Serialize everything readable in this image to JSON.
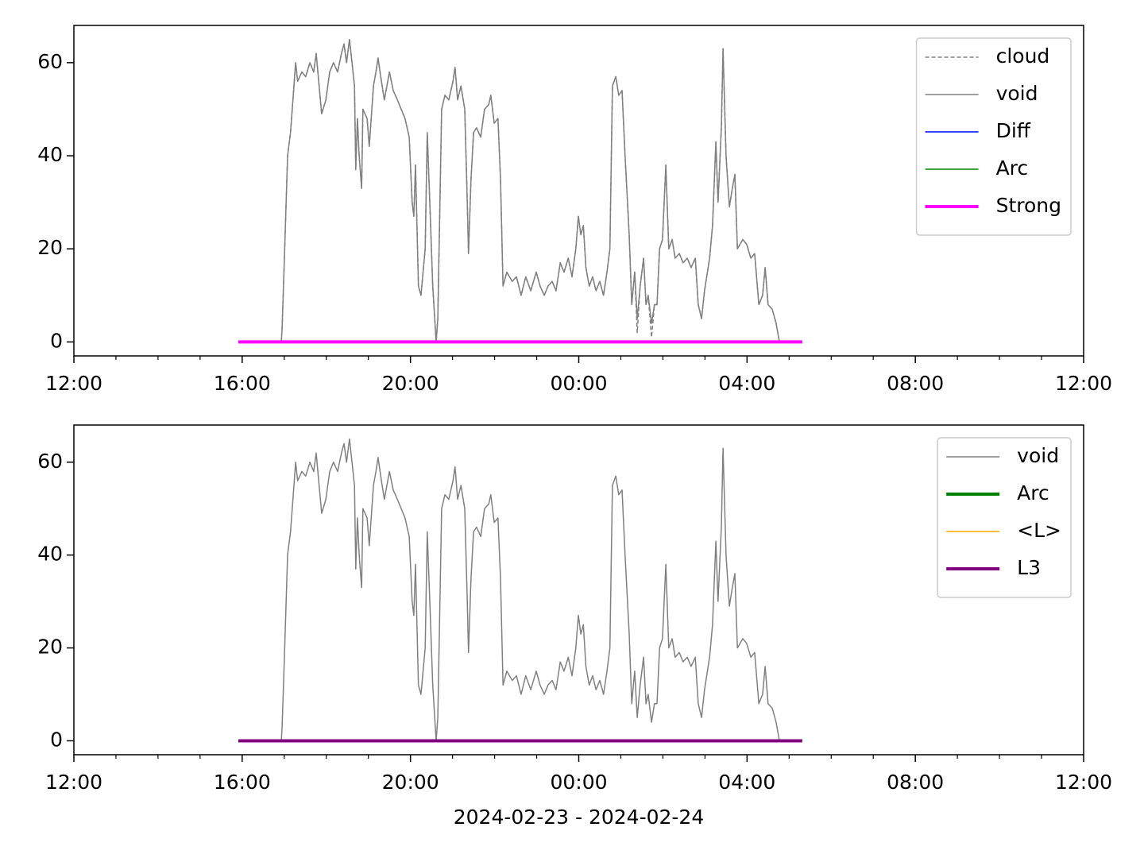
{
  "chart_data": [
    {
      "type": "line",
      "xlim": [
        12,
        36
      ],
      "ylim": [
        -3,
        68
      ],
      "xticks": [
        {
          "value": 12,
          "label": "12:00"
        },
        {
          "value": 16,
          "label": "16:00"
        },
        {
          "value": 20,
          "label": "20:00"
        },
        {
          "value": 24,
          "label": "00:00"
        },
        {
          "value": 28,
          "label": "04:00"
        },
        {
          "value": 32,
          "label": "08:00"
        },
        {
          "value": 36,
          "label": "12:00"
        }
      ],
      "yticks": [
        0,
        20,
        40,
        60
      ],
      "legend": "upper right",
      "x": [
        16.93,
        16.95,
        17.0,
        17.08,
        17.15,
        17.23,
        17.27,
        17.32,
        17.42,
        17.51,
        17.61,
        17.7,
        17.76,
        17.83,
        17.89,
        17.99,
        18.08,
        18.17,
        18.27,
        18.36,
        18.42,
        18.48,
        18.55,
        18.61,
        18.67,
        18.7,
        18.74,
        18.78,
        18.84,
        18.87,
        18.97,
        19.02,
        19.12,
        19.18,
        19.23,
        19.31,
        19.38,
        19.5,
        19.59,
        19.69,
        19.87,
        19.97,
        20.04,
        20.08,
        20.12,
        20.19,
        20.25,
        20.35,
        20.4,
        20.46,
        20.53,
        20.61,
        20.65,
        20.74,
        20.82,
        20.91,
        21.01,
        21.06,
        21.12,
        21.2,
        21.29,
        21.35,
        21.38,
        21.44,
        21.5,
        21.57,
        21.67,
        21.76,
        21.86,
        21.91,
        21.99,
        22.08,
        22.14,
        22.2,
        22.29,
        22.42,
        22.52,
        22.63,
        22.74,
        22.86,
        22.99,
        23.08,
        23.18,
        23.27,
        23.37,
        23.46,
        23.56,
        23.65,
        23.75,
        23.84,
        23.93,
        23.99,
        24.05,
        24.11,
        24.17,
        24.25,
        24.33,
        24.41,
        24.5,
        24.59,
        24.67,
        24.74,
        24.8,
        24.88,
        24.95,
        25.03,
        25.1,
        25.2,
        25.26,
        25.33,
        25.39,
        25.46,
        25.54,
        25.6,
        25.65,
        25.73,
        25.8,
        25.86,
        25.92,
        25.99,
        26.07,
        26.14,
        26.22,
        26.29,
        26.39,
        26.48,
        26.58,
        26.67,
        26.77,
        26.84,
        26.92,
        26.99,
        27.11,
        27.18,
        27.26,
        27.31,
        27.39,
        27.43,
        27.5,
        27.58,
        27.65,
        27.71,
        27.77,
        27.9,
        27.99,
        28.09,
        28.18,
        28.28,
        28.37,
        28.43,
        28.5,
        28.6,
        28.69,
        28.77
      ],
      "series": [
        {
          "name": "cloud",
          "color": "#808080",
          "linestyle": "dashed",
          "linewidth": 1.5,
          "values": [
            0,
            3,
            17,
            40,
            45,
            55,
            60,
            56,
            58,
            57,
            60,
            58,
            62,
            55,
            49,
            52,
            58,
            60,
            58,
            62,
            64,
            60,
            65,
            60,
            55,
            37,
            48,
            40,
            33,
            50,
            48,
            42,
            55,
            58,
            61,
            56,
            52,
            58,
            54,
            52,
            48,
            44,
            30,
            27,
            38,
            12,
            10,
            20,
            45,
            30,
            12,
            0,
            5,
            50,
            53,
            52,
            56,
            59,
            52,
            55,
            50,
            30,
            19,
            35,
            45,
            46,
            44,
            50,
            51,
            53,
            47,
            48,
            35,
            12,
            15,
            13,
            14,
            10,
            14,
            11,
            15,
            12,
            10,
            12,
            13,
            11,
            17,
            15,
            18,
            14,
            20,
            27,
            23,
            25,
            16,
            12,
            14,
            11,
            13,
            10,
            15,
            20,
            55,
            57,
            53,
            54,
            40,
            23,
            8,
            15,
            2,
            12,
            18,
            8,
            10,
            1,
            8,
            8,
            20,
            22,
            38,
            20,
            22,
            18,
            19,
            17,
            18,
            16,
            18,
            8,
            5,
            11,
            18,
            25,
            43,
            30,
            46,
            63,
            40,
            29,
            33,
            36,
            20,
            22,
            21,
            18,
            19,
            8,
            10,
            16,
            8,
            7,
            4,
            0
          ]
        },
        {
          "name": "void",
          "color": "#808080",
          "linewidth": 1.5,
          "values": [
            0,
            3,
            17,
            40,
            45,
            55,
            60,
            56,
            58,
            57,
            60,
            58,
            62,
            55,
            49,
            52,
            58,
            60,
            58,
            62,
            64,
            60,
            65,
            60,
            55,
            37,
            48,
            40,
            33,
            50,
            48,
            42,
            55,
            58,
            61,
            56,
            52,
            58,
            54,
            52,
            48,
            44,
            30,
            27,
            38,
            12,
            10,
            20,
            45,
            30,
            12,
            0,
            5,
            50,
            53,
            52,
            56,
            59,
            52,
            55,
            50,
            30,
            19,
            35,
            45,
            46,
            44,
            50,
            51,
            53,
            47,
            48,
            35,
            12,
            15,
            13,
            14,
            10,
            14,
            11,
            15,
            12,
            10,
            12,
            13,
            11,
            17,
            15,
            18,
            14,
            20,
            27,
            23,
            25,
            16,
            12,
            14,
            11,
            13,
            10,
            15,
            20,
            55,
            57,
            53,
            54,
            40,
            23,
            8,
            15,
            5,
            12,
            18,
            8,
            10,
            4,
            8,
            8,
            20,
            22,
            38,
            20,
            22,
            18,
            19,
            17,
            18,
            16,
            18,
            8,
            5,
            11,
            18,
            25,
            43,
            30,
            46,
            63,
            40,
            29,
            33,
            36,
            20,
            22,
            21,
            18,
            19,
            8,
            10,
            16,
            8,
            7,
            4,
            0
          ]
        },
        {
          "name": "Diff",
          "color": "#0000ff",
          "linewidth": 1.5,
          "x": [
            15.91,
            29.31
          ],
          "values": [
            0,
            0
          ]
        },
        {
          "name": "Arc",
          "color": "#008000",
          "linewidth": 1.5,
          "x": [
            15.91,
            29.31
          ],
          "values": [
            0,
            0
          ]
        },
        {
          "name": "Strong",
          "color": "#ff00ff",
          "linewidth": 4,
          "x": [
            15.91,
            29.31
          ],
          "values": [
            0,
            0
          ]
        }
      ]
    },
    {
      "type": "line",
      "xlim": [
        12,
        36
      ],
      "ylim": [
        -3,
        68
      ],
      "xticks": [
        {
          "value": 12,
          "label": "12:00"
        },
        {
          "value": 16,
          "label": "16:00"
        },
        {
          "value": 20,
          "label": "20:00"
        },
        {
          "value": 24,
          "label": "00:00"
        },
        {
          "value": 28,
          "label": "04:00"
        },
        {
          "value": 32,
          "label": "08:00"
        },
        {
          "value": 36,
          "label": "12:00"
        }
      ],
      "yticks": [
        0,
        20,
        40,
        60
      ],
      "xlabel": "2024-02-23 - 2024-02-24",
      "legend": "upper right",
      "x": [
        16.93,
        16.95,
        17.0,
        17.08,
        17.15,
        17.23,
        17.27,
        17.32,
        17.42,
        17.51,
        17.61,
        17.7,
        17.76,
        17.83,
        17.89,
        17.99,
        18.08,
        18.17,
        18.27,
        18.36,
        18.42,
        18.48,
        18.55,
        18.61,
        18.67,
        18.7,
        18.74,
        18.78,
        18.84,
        18.87,
        18.97,
        19.02,
        19.12,
        19.18,
        19.23,
        19.31,
        19.38,
        19.5,
        19.59,
        19.69,
        19.87,
        19.97,
        20.04,
        20.08,
        20.12,
        20.19,
        20.25,
        20.35,
        20.4,
        20.46,
        20.53,
        20.61,
        20.65,
        20.74,
        20.82,
        20.91,
        21.01,
        21.06,
        21.12,
        21.2,
        21.29,
        21.35,
        21.38,
        21.44,
        21.5,
        21.57,
        21.67,
        21.76,
        21.86,
        21.91,
        21.99,
        22.08,
        22.14,
        22.2,
        22.29,
        22.42,
        22.52,
        22.63,
        22.74,
        22.86,
        22.99,
        23.08,
        23.18,
        23.27,
        23.37,
        23.46,
        23.56,
        23.65,
        23.75,
        23.84,
        23.93,
        23.99,
        24.05,
        24.11,
        24.17,
        24.25,
        24.33,
        24.41,
        24.5,
        24.59,
        24.67,
        24.74,
        24.8,
        24.88,
        24.95,
        25.03,
        25.1,
        25.2,
        25.26,
        25.33,
        25.39,
        25.46,
        25.54,
        25.6,
        25.65,
        25.73,
        25.8,
        25.86,
        25.92,
        25.99,
        26.07,
        26.14,
        26.22,
        26.29,
        26.39,
        26.48,
        26.58,
        26.67,
        26.77,
        26.84,
        26.92,
        26.99,
        27.11,
        27.18,
        27.26,
        27.31,
        27.39,
        27.43,
        27.5,
        27.58,
        27.65,
        27.71,
        27.77,
        27.9,
        27.99,
        28.09,
        28.18,
        28.28,
        28.37,
        28.43,
        28.5,
        28.6,
        28.69,
        28.77
      ],
      "series": [
        {
          "name": "void",
          "color": "#808080",
          "linewidth": 1.5,
          "values": [
            0,
            3,
            17,
            40,
            45,
            55,
            60,
            56,
            58,
            57,
            60,
            58,
            62,
            55,
            49,
            52,
            58,
            60,
            58,
            62,
            64,
            60,
            65,
            60,
            55,
            37,
            48,
            40,
            33,
            50,
            48,
            42,
            55,
            58,
            61,
            56,
            52,
            58,
            54,
            52,
            48,
            44,
            30,
            27,
            38,
            12,
            10,
            20,
            45,
            30,
            12,
            0,
            5,
            50,
            53,
            52,
            56,
            59,
            52,
            55,
            50,
            30,
            19,
            35,
            45,
            46,
            44,
            50,
            51,
            53,
            47,
            48,
            35,
            12,
            15,
            13,
            14,
            10,
            14,
            11,
            15,
            12,
            10,
            12,
            13,
            11,
            17,
            15,
            18,
            14,
            20,
            27,
            23,
            25,
            16,
            12,
            14,
            11,
            13,
            10,
            15,
            20,
            55,
            57,
            53,
            54,
            40,
            23,
            8,
            15,
            5,
            12,
            18,
            8,
            10,
            4,
            8,
            8,
            20,
            22,
            38,
            20,
            22,
            18,
            19,
            17,
            18,
            16,
            18,
            8,
            5,
            11,
            18,
            25,
            43,
            30,
            46,
            63,
            40,
            29,
            33,
            36,
            20,
            22,
            21,
            18,
            19,
            8,
            10,
            16,
            8,
            7,
            4,
            0
          ]
        },
        {
          "name": "Arc",
          "color": "#008000",
          "linewidth": 4,
          "x": [
            15.91,
            29.31
          ],
          "values": [
            0,
            0
          ]
        },
        {
          "name": "<L>",
          "color": "#ffa500",
          "linewidth": 1.5,
          "x": [
            15.91,
            29.31
          ],
          "values": [
            0,
            0
          ]
        },
        {
          "name": "L3",
          "color": "#800080",
          "linewidth": 4,
          "x": [
            15.91,
            29.31
          ],
          "values": [
            0,
            0
          ]
        }
      ]
    }
  ]
}
